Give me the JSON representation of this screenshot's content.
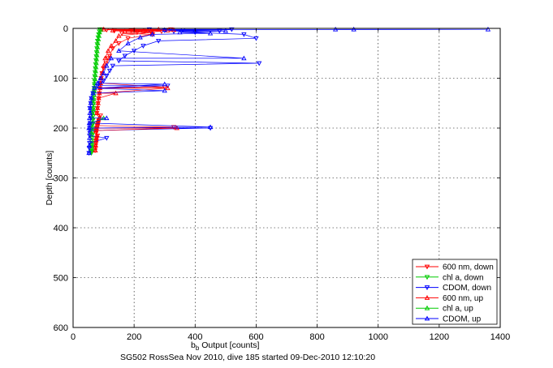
{
  "chart_data": {
    "type": "scatter",
    "xlabel_main": "b",
    "xlabel_sub": "b",
    "xlabel_rest": " Output [counts]",
    "ylabel": "Depth [counts]",
    "caption": "SG502 RossSea Nov 2010, dive 185 started 09-Dec-2010 12:10:20",
    "xlim": [
      0,
      1400
    ],
    "ylim": [
      0,
      600
    ],
    "y_reversed": true,
    "grid": true,
    "legend_position": "bottom-right",
    "xticks": [
      "0",
      "200",
      "400",
      "600",
      "800",
      "1000",
      "1200",
      "1400"
    ],
    "yticks": [
      "0",
      "100",
      "200",
      "300",
      "400",
      "500",
      "600"
    ],
    "series": [
      {
        "name": "600 nm, down",
        "color": "#ff0000",
        "marker": "triangle-down",
        "x": [
          95,
          110,
          135,
          160,
          190,
          210,
          240,
          260,
          290,
          320,
          180,
          150,
          130,
          120,
          115,
          108,
          100,
          95,
          92,
          90,
          88,
          86,
          84,
          82,
          80,
          78,
          300,
          90,
          85,
          82,
          80,
          78,
          76,
          75,
          330,
          80,
          78,
          76,
          75,
          74,
          73,
          72
        ],
        "y": [
          2,
          3,
          5,
          10,
          4,
          8,
          3,
          12,
          6,
          2,
          20,
          30,
          40,
          55,
          60,
          70,
          80,
          90,
          100,
          110,
          120,
          130,
          140,
          150,
          160,
          170,
          118,
          175,
          185,
          190,
          195,
          200,
          205,
          210,
          198,
          215,
          220,
          225,
          230,
          235,
          240,
          245
        ]
      },
      {
        "name": "chl a, down",
        "color": "#00cc00",
        "marker": "triangle-down",
        "x": [
          88,
          86,
          84,
          82,
          80,
          79,
          78,
          77,
          76,
          75,
          74,
          73,
          72,
          71,
          70,
          70,
          69,
          69,
          68,
          68,
          67,
          67,
          66,
          66,
          65,
          65,
          64,
          64,
          63,
          63,
          62,
          62,
          62,
          61,
          61,
          61,
          60,
          60
        ],
        "y": [
          2,
          6,
          12,
          18,
          25,
          32,
          40,
          48,
          56,
          64,
          72,
          80,
          88,
          96,
          104,
          112,
          120,
          128,
          136,
          144,
          152,
          160,
          168,
          176,
          184,
          192,
          200,
          208,
          214,
          220,
          226,
          230,
          234,
          238,
          242,
          246,
          248,
          250
        ]
      },
      {
        "name": "CDOM, down",
        "color": "#0000ff",
        "marker": "triangle-down",
        "x": [
          250,
          300,
          330,
          360,
          400,
          480,
          520,
          560,
          600,
          610,
          280,
          230,
          200,
          170,
          150,
          130,
          120,
          110,
          100,
          90,
          80,
          70,
          65,
          60,
          58,
          55,
          310,
          60,
          58,
          56,
          55,
          54,
          450,
          56,
          55,
          54,
          110,
          54,
          53,
          52
        ],
        "y": [
          2,
          4,
          6,
          3,
          8,
          5,
          2,
          12,
          20,
          70,
          25,
          35,
          45,
          55,
          65,
          75,
          85,
          95,
          105,
          110,
          115,
          120,
          130,
          140,
          150,
          160,
          115,
          170,
          180,
          190,
          195,
          200,
          200,
          205,
          210,
          215,
          220,
          230,
          240,
          250
        ]
      },
      {
        "name": "600 nm, up",
        "color": "#ff0000",
        "marker": "triangle-up",
        "x": [
          100,
          130,
          170,
          200,
          230,
          260,
          280,
          310,
          330,
          150,
          140,
          125,
          115,
          105,
          100,
          95,
          92,
          90,
          88,
          86,
          84,
          82,
          80,
          78,
          310,
          140,
          85,
          82,
          80,
          78,
          76,
          75,
          340,
          78,
          76,
          75,
          74,
          73
        ],
        "y": [
          2,
          4,
          6,
          3,
          5,
          8,
          2,
          4,
          3,
          15,
          25,
          35,
          45,
          60,
          75,
          90,
          100,
          110,
          120,
          130,
          140,
          150,
          160,
          170,
          120,
          130,
          180,
          185,
          190,
          195,
          200,
          205,
          200,
          215,
          220,
          225,
          235,
          245
        ]
      },
      {
        "name": "chl a, up",
        "color": "#00cc00",
        "marker": "triangle-up",
        "x": [
          90,
          87,
          85,
          83,
          81,
          80,
          79,
          78,
          77,
          76,
          75,
          74,
          73,
          72,
          71,
          70,
          69,
          68,
          67,
          66,
          65,
          64,
          63,
          62,
          61,
          60,
          100
        ],
        "y": [
          3,
          8,
          15,
          22,
          30,
          38,
          46,
          54,
          62,
          70,
          78,
          86,
          94,
          102,
          110,
          118,
          126,
          134,
          142,
          150,
          160,
          170,
          180,
          190,
          200,
          210,
          180
        ]
      },
      {
        "name": "CDOM, up",
        "color": "#0000ff",
        "marker": "triangle-up",
        "x": [
          860,
          920,
          1360,
          560,
          500,
          450,
          400,
          350,
          300,
          260,
          220,
          180,
          150,
          125,
          110,
          100,
          90,
          80,
          70,
          65,
          60,
          58,
          56,
          55,
          54,
          53,
          52,
          300,
          300,
          110,
          450,
          54,
          53,
          52
        ],
        "y": [
          2,
          2,
          2,
          60,
          5,
          10,
          4,
          8,
          3,
          12,
          18,
          30,
          45,
          60,
          75,
          90,
          100,
          110,
          120,
          130,
          140,
          150,
          160,
          170,
          180,
          190,
          200,
          112,
          125,
          180,
          198,
          220,
          235,
          250
        ]
      }
    ]
  }
}
